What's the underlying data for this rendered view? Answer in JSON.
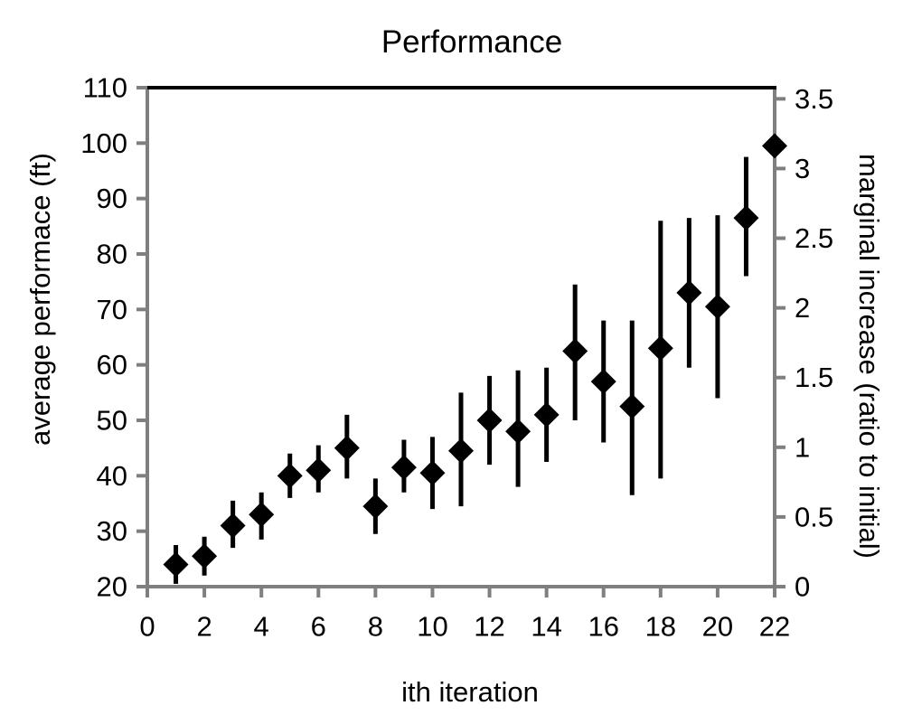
{
  "chart_data": {
    "type": "scatter",
    "title": "Performance",
    "xlabel": "ith iteration",
    "ylabel_left": "average performace (ft)",
    "ylabel_right": "marginal increase (ratio to initial)",
    "xlim": [
      0,
      22
    ],
    "x_ticks": [
      0,
      2,
      4,
      6,
      8,
      10,
      12,
      14,
      16,
      18,
      20,
      22
    ],
    "ylim_left": [
      20,
      110
    ],
    "y_ticks_left": [
      20,
      30,
      40,
      50,
      60,
      70,
      80,
      90,
      100,
      110
    ],
    "ylim_right": [
      0,
      3.58
    ],
    "y_ticks_right": [
      0,
      0.5,
      1,
      1.5,
      2,
      2.5,
      3,
      3.5
    ],
    "grid": false,
    "legend": false,
    "marker": "diamond",
    "colors": {
      "marker": "#000000",
      "error_bar": "#000000",
      "axis": "#7f7f7f",
      "top_border": "#000000",
      "text": "#000000",
      "background": "#ffffff"
    },
    "series": [
      {
        "name": "performance",
        "x": [
          1,
          2,
          3,
          4,
          5,
          6,
          7,
          8,
          9,
          10,
          11,
          12,
          13,
          14,
          15,
          16,
          17,
          18,
          19,
          20,
          21,
          22
        ],
        "y": [
          24,
          25.5,
          31,
          33,
          40,
          41,
          45,
          34.5,
          41.5,
          40.5,
          44.5,
          50,
          48,
          51,
          62.5,
          57,
          52.5,
          63,
          73,
          70.5,
          86.5,
          99.5
        ],
        "error_low": [
          20.5,
          22,
          27,
          28.5,
          36,
          37,
          39.5,
          29.5,
          37,
          34,
          34.5,
          42,
          38,
          42.5,
          50,
          46,
          36.5,
          39.5,
          59.5,
          54,
          76,
          null
        ],
        "error_high": [
          27.5,
          29,
          35.5,
          37,
          44,
          45.5,
          51,
          39.5,
          46.5,
          47,
          55,
          58,
          59,
          59.5,
          74.5,
          68,
          68,
          86,
          86.5,
          87,
          97.5,
          null
        ]
      }
    ]
  }
}
